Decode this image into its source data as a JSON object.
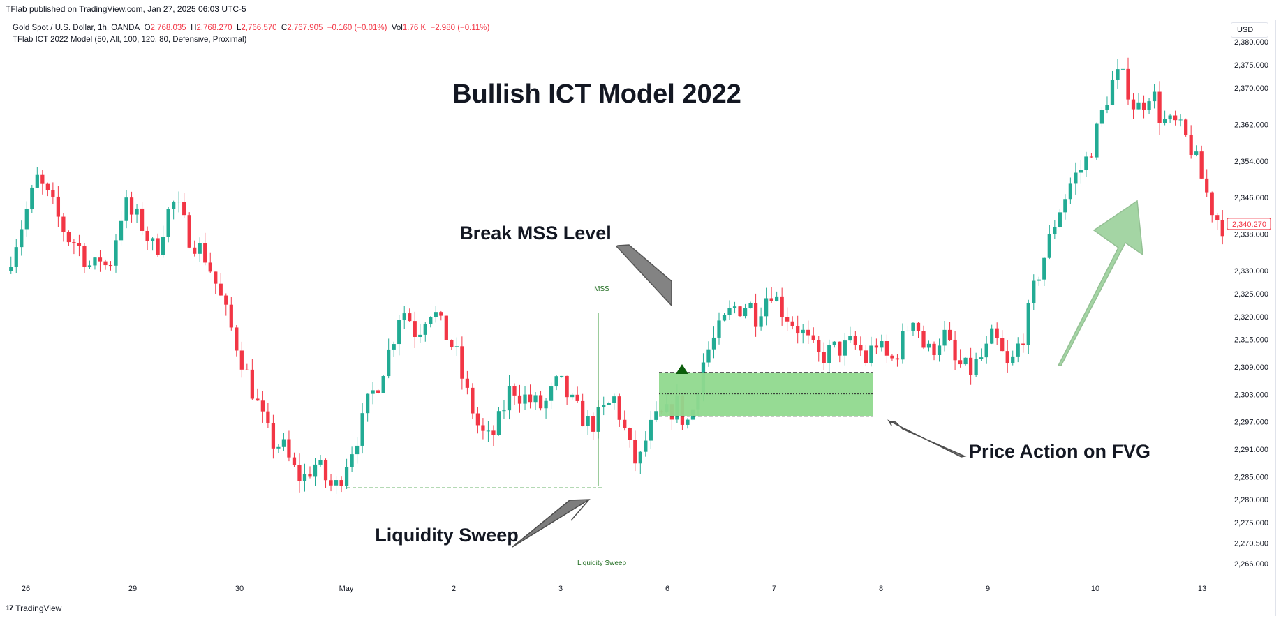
{
  "header": {
    "published": "TFlab published on TradingView.com, Jan 27, 2025 06:03 UTC-5"
  },
  "legend": {
    "symbol": "Gold Spot / U.S. Dollar, 1h, OANDA",
    "o_label": "O",
    "o_value": "2,768.035",
    "h_label": "H",
    "h_value": "2,768.270",
    "l_label": "L",
    "l_value": "2,766.570",
    "c_label": "C",
    "c_value": "2,767.905",
    "change": "−0.160 (−0.01%)",
    "vol_label": "Vol",
    "vol_value": "1.76 K",
    "vol_change": "−2.980 (−0.11%)",
    "indicator": "TFlab ICT 2022 Model (50, All, 100, 120, 80, Defensive, Proximal)"
  },
  "currency_button": "USD",
  "footer": {
    "brand": "TradingView",
    "logo": "17"
  },
  "colors": {
    "up": "#22ab94",
    "down": "#f23645",
    "fvg": "#90d98e",
    "label_green": "#1e6b1e",
    "arrow_gray": "#7d7d7d"
  },
  "chart_data": {
    "type": "candlestick",
    "title": "Bullish ICT Model 2022",
    "x_ticks": [
      "26",
      "29",
      "30",
      "May",
      "2",
      "3",
      "6",
      "7",
      "8",
      "9",
      "10",
      "13"
    ],
    "y_ticks": [
      "2,380.000",
      "2,375.000",
      "2,370.000",
      "2,362.000",
      "2,354.000",
      "2,346.000",
      "2,338.000",
      "2,330.000",
      "2,325.000",
      "2,320.000",
      "2,315.000",
      "2,309.000",
      "2,303.000",
      "2,297.000",
      "2,291.000",
      "2,285.000",
      "2,280.000",
      "2,275.000",
      "2,270.500",
      "2,266.000"
    ],
    "last_price": "2,340.270",
    "price_path": [
      2330,
      2335,
      2340,
      2345,
      2350,
      2347,
      2344,
      2340,
      2337,
      2336,
      2333,
      2330,
      2333,
      2330,
      2338,
      2345,
      2342,
      2341,
      2337,
      2334,
      2340,
      2345,
      2343,
      2338,
      2336,
      2334,
      2330,
      2325,
      2320,
      2315,
      2310,
      2305,
      2300,
      2295,
      2292,
      2292,
      2288,
      2285,
      2285,
      2288,
      2286,
      2283,
      2283,
      2288,
      2292,
      2296,
      2302,
      2305,
      2310,
      2315,
      2322,
      2320,
      2316,
      2320,
      2322,
      2318,
      2315,
      2312,
      2305,
      2300,
      2295,
      2293,
      2295,
      2300,
      2305,
      2303,
      2302,
      2301,
      2300,
      2303,
      2306,
      2303,
      2300,
      2298,
      2296,
      2298,
      2300,
      2302,
      2297,
      2291,
      2287,
      2293,
      2297,
      2298,
      2299,
      2301,
      2296,
      2300,
      2309,
      2313,
      2316,
      2319,
      2322,
      2322,
      2323,
      2320,
      2324,
      2326,
      2322,
      2320,
      2318,
      2316,
      2313,
      2311,
      2312,
      2313,
      2313,
      2314,
      2313,
      2310,
      2315,
      2312,
      2310,
      2313,
      2317,
      2321,
      2314,
      2312,
      2315,
      2316,
      2310,
      2309,
      2308,
      2310,
      2312,
      2316,
      2312,
      2308,
      2313,
      2317,
      2325,
      2331,
      2336,
      2342,
      2346,
      2350,
      2352,
      2355,
      2360,
      2366,
      2371,
      2373,
      2370,
      2365,
      2367,
      2370,
      2364,
      2362,
      2362,
      2360,
      2357,
      2352,
      2347,
      2342,
      2340
    ],
    "annotations": {
      "mss_label": "MSS",
      "liquidity_label": "Liquidity Sweep",
      "callout_mss": "Break MSS Level",
      "callout_sweep": "Liquidity Sweep",
      "callout_fvg": "Price Action on FVG"
    },
    "levels": {
      "liquidity": 2282.6,
      "mss": 2320.8,
      "fvg_top": 2307.8,
      "fvg_mid": 2303.1,
      "fvg_bottom": 2298.2
    }
  }
}
